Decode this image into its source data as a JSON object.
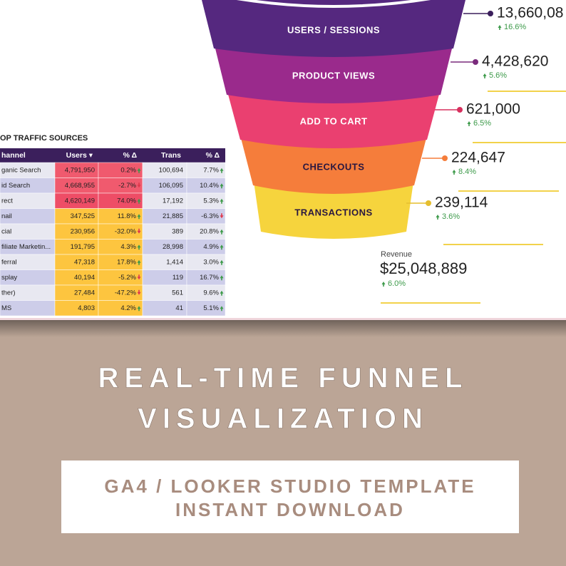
{
  "funnel": {
    "stages": [
      {
        "label": "USERS / SESSIONS",
        "value": "13,660,08",
        "change": "16.6%"
      },
      {
        "label": "PRODUCT VIEWS",
        "value": "4,428,620",
        "change": "5.6%"
      },
      {
        "label": "ADD TO CART",
        "value": "621,000",
        "change": "6.5%"
      },
      {
        "label": "CHECKOUTS",
        "value": "224,647",
        "change": "8.4%"
      },
      {
        "label": "TRANSACTIONS",
        "value": "239,114",
        "change": "3.6%"
      }
    ],
    "revenue": {
      "label": "Revenue",
      "value": "$25,048,889",
      "change": "6.0%"
    }
  },
  "table": {
    "title": "OP TRAFFIC SOURCES",
    "columns": [
      "hannel",
      "Users ▾",
      "% Δ",
      "Trans",
      "% Δ"
    ],
    "rows": [
      [
        "ganic Search",
        "4,791,950",
        "0.2%",
        "100,694",
        "7.7%"
      ],
      [
        "id Search",
        "4,668,955",
        "-2.7%",
        "106,095",
        "10.4%"
      ],
      [
        "rect",
        "4,620,149",
        "74.0%",
        "17,192",
        "5.3%"
      ],
      [
        "nail",
        "347,525",
        "11.8%",
        "21,885",
        "-6.3%"
      ],
      [
        "cial",
        "230,956",
        "-32.0%",
        "389",
        "20.8%"
      ],
      [
        "filiate Marketin...",
        "191,795",
        "4.3%",
        "28,998",
        "4.9%"
      ],
      [
        "ferral",
        "47,318",
        "17.8%",
        "1,414",
        "3.0%"
      ],
      [
        "splay",
        "40,194",
        "-5.2%",
        "119",
        "16.7%"
      ],
      [
        "ther)",
        "27,484",
        "-47.2%",
        "561",
        "9.6%"
      ],
      [
        "MS",
        "4,803",
        "4.2%",
        "41",
        "5.1%"
      ]
    ]
  },
  "headline": {
    "lines": [
      "REAL-TIME FUNNEL",
      "VISUALIZATION"
    ]
  },
  "banner": {
    "lines": [
      "GA4 / LOOKER STUDIO TEMPLATE",
      "INSTANT DOWNLOAD"
    ]
  }
}
